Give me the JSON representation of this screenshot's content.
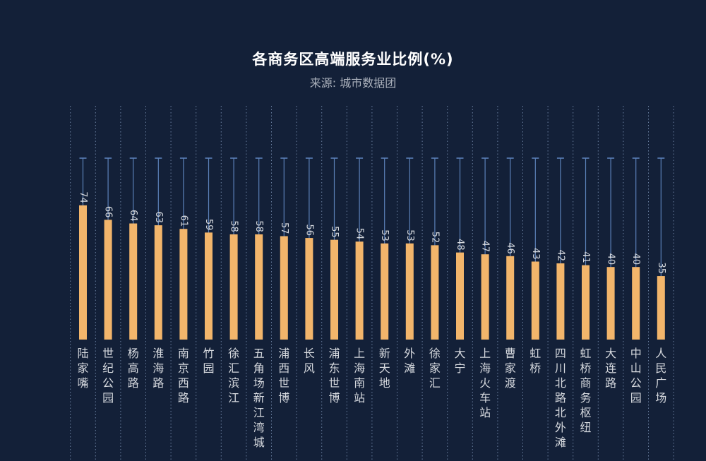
{
  "chart_data": {
    "type": "bar",
    "title": "各商务区高端服务业比例(%)",
    "subtitle": "来源: 城市数据团",
    "categories": [
      "陆家嘴",
      "世纪公园",
      "杨高路",
      "淮海路",
      "南京西路",
      "竹园",
      "徐汇滨江",
      "五角场新江湾城",
      "浦西世博",
      "长风",
      "浦东世博",
      "上海南站",
      "新天地",
      "外滩",
      "徐家汇",
      "大宁",
      "上海火车站",
      "曹家渡",
      "虹桥",
      "四川北路北外滩",
      "虹桥商务枢纽",
      "大连路",
      "中山公园",
      "人民广场"
    ],
    "values": [
      74,
      66,
      64,
      63,
      61,
      59,
      58,
      58,
      57,
      56,
      55,
      54,
      53,
      53,
      52,
      48,
      47,
      46,
      43,
      42,
      41,
      40,
      40,
      35
    ],
    "ylim": [
      0,
      100
    ],
    "colors": {
      "background": "#132038",
      "bar": "#f2b56b",
      "whisker": "#5b80b8",
      "grid": "#6a7fa0",
      "label": "#d6d9de"
    }
  }
}
